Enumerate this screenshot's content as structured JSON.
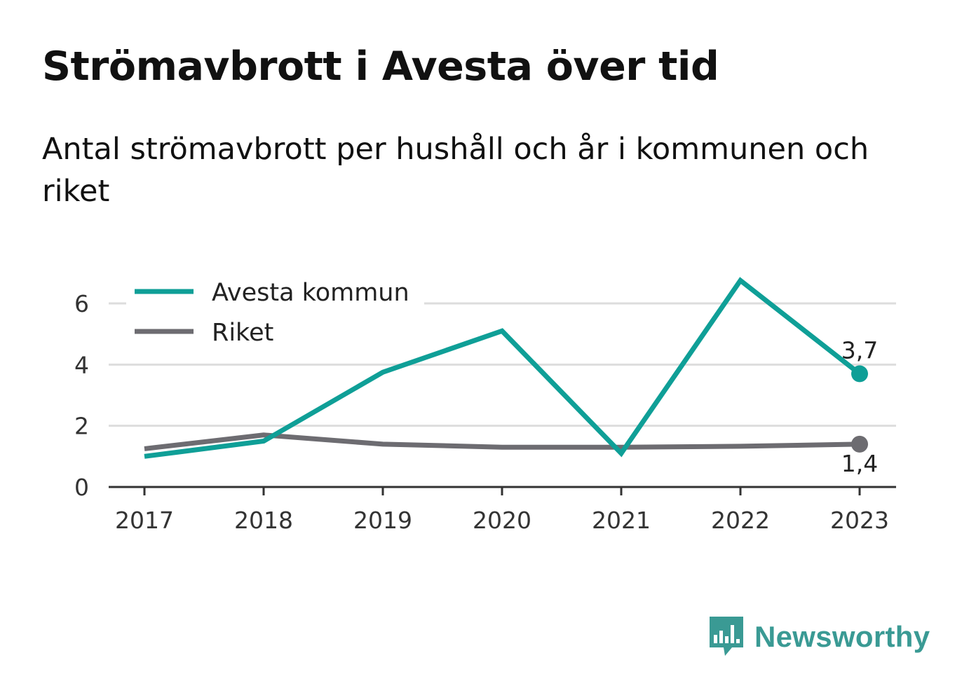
{
  "title": "Strömavbrott i Avesta över tid",
  "subtitle": "Antal strömavbrott per hushåll och år i kommunen och riket",
  "brand": {
    "name": "Newsworthy",
    "color": "#3a9a94"
  },
  "chart_data": {
    "type": "line",
    "x": [
      2017,
      2018,
      2019,
      2020,
      2021,
      2022,
      2023
    ],
    "x_tick_labels": [
      "2017",
      "2018",
      "2019",
      "2020",
      "2021",
      "2022",
      "2023"
    ],
    "ylim": [
      0,
      6.8
    ],
    "y_ticks": [
      0,
      2,
      4,
      6
    ],
    "y_tick_labels": [
      "0",
      "2",
      "4",
      "6"
    ],
    "grid": true,
    "legend_position": "top-left",
    "series": [
      {
        "name": "Avesta kommun",
        "color": "#0f9f97",
        "values": [
          1.0,
          1.5,
          3.75,
          5.1,
          1.1,
          6.75,
          3.7
        ],
        "end_label": "3,7"
      },
      {
        "name": "Riket",
        "color": "#6d6c71",
        "values": [
          1.25,
          1.7,
          1.4,
          1.3,
          1.3,
          1.33,
          1.4
        ],
        "end_label": "1,4"
      }
    ]
  }
}
